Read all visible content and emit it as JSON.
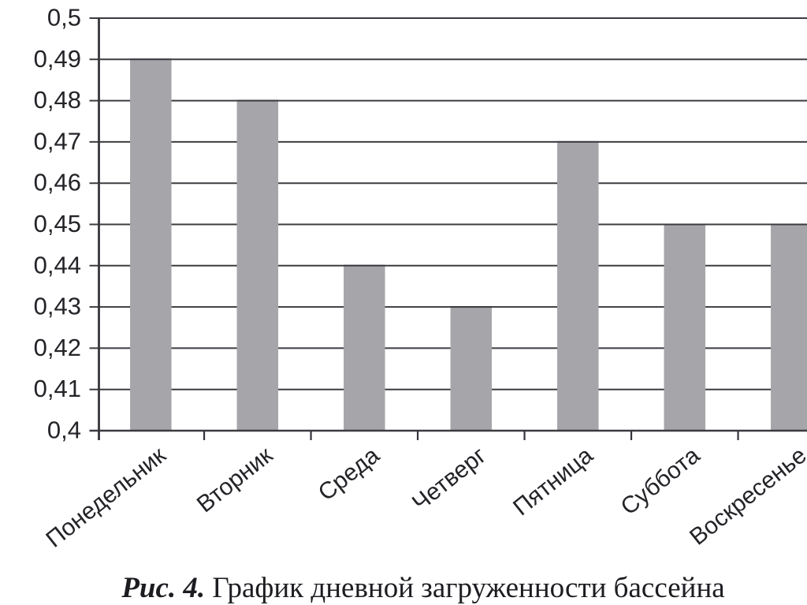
{
  "figure": {
    "caption": {
      "prefix": "Рис. 4.",
      "text": "График дневной загруженности бассейна"
    }
  },
  "chart_data": {
    "type": "bar",
    "categories": [
      "Понедельник",
      "Вторник",
      "Среда",
      "Четверг",
      "Пятница",
      "Суббота",
      "Воскресенье"
    ],
    "values": [
      0.49,
      0.48,
      0.44,
      0.43,
      0.47,
      0.45,
      0.45
    ],
    "title": "",
    "xlabel": "",
    "ylabel": "",
    "ylim": [
      0.4,
      0.5
    ],
    "ytick_step": 0.01,
    "ytick_labels": [
      "0,4",
      "0,41",
      "0,42",
      "0,43",
      "0,44",
      "0,45",
      "0,46",
      "0,47",
      "0,48",
      "0,49",
      "0,5"
    ],
    "decimal_separator": ",",
    "grid": true,
    "legend": false,
    "colors": {
      "bar": "#a6a6aa",
      "grid": "#3b3b41",
      "axis": "#35353b",
      "tick_label": "#232328",
      "background": "#ffffff"
    }
  }
}
